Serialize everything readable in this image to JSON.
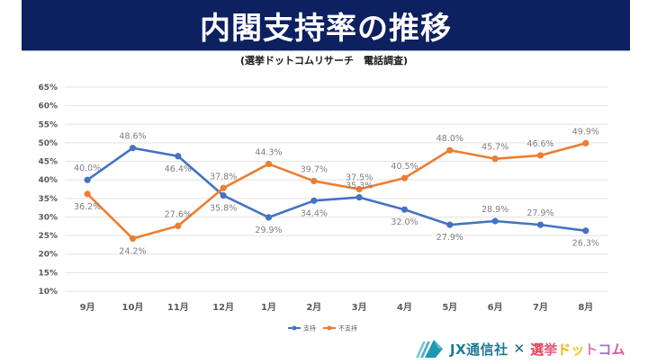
{
  "header": {
    "title": "内閣支持率の推移",
    "subtitle": "(選挙ドットコムリサーチ　電話調査)"
  },
  "footer": {
    "logo_left": "JX通信社",
    "logo_sep": "✕",
    "logo_right_chars": [
      {
        "ch": "選",
        "color": "#e0405a"
      },
      {
        "ch": "挙",
        "color": "#e85a7a"
      },
      {
        "ch": "ド",
        "color": "#f2b418"
      },
      {
        "ch": "ッ",
        "color": "#f2c418"
      },
      {
        "ch": "ト",
        "color": "#e07ab0"
      },
      {
        "ch": "コ",
        "color": "#a070c8"
      },
      {
        "ch": "ム",
        "color": "#d060a0"
      }
    ]
  },
  "chart_data": {
    "type": "line",
    "title": "内閣支持率の推移",
    "subtitle": "(選挙ドットコムリサーチ　電話調査)",
    "xlabel": "",
    "ylabel": "",
    "categories": [
      "9月",
      "10月",
      "11月",
      "12月",
      "1月",
      "2月",
      "3月",
      "4月",
      "5月",
      "6月",
      "7月",
      "8月"
    ],
    "ylim": [
      10,
      65
    ],
    "yticks": [
      10,
      15,
      20,
      25,
      30,
      35,
      40,
      45,
      50,
      55,
      60,
      65
    ],
    "ytick_labels": [
      "10%",
      "15%",
      "20%",
      "25%",
      "30%",
      "35%",
      "40%",
      "45%",
      "50%",
      "55%",
      "60%",
      "65%"
    ],
    "grid": true,
    "legend_position": "bottom",
    "series": [
      {
        "name": "支持",
        "color": "#4472c4",
        "values": [
          40.0,
          48.6,
          46.4,
          35.8,
          29.9,
          34.4,
          35.3,
          32.0,
          27.9,
          28.9,
          27.9,
          26.3
        ],
        "labels": [
          "40.0%",
          "48.6%",
          "46.4%",
          "35.8%",
          "29.9%",
          "34.4%",
          "35.3%",
          "32.0%",
          "27.9%",
          "28.9%",
          "27.9%",
          "26.3%"
        ],
        "label_side": [
          "above",
          "above",
          "below",
          "below",
          "below",
          "below",
          "above",
          "below",
          "below",
          "above",
          "above",
          "below"
        ]
      },
      {
        "name": "不支持",
        "color": "#ed7d31",
        "values": [
          36.2,
          24.2,
          27.6,
          37.8,
          44.3,
          39.7,
          37.5,
          40.5,
          48.0,
          45.7,
          46.6,
          49.9
        ],
        "labels": [
          "36.2%",
          "24.2%",
          "27.6%",
          "37.8%",
          "44.3%",
          "39.7%",
          "37.5%",
          "40.5%",
          "48.0%",
          "45.7%",
          "46.6%",
          "49.9%"
        ],
        "label_side": [
          "below",
          "below",
          "above",
          "above",
          "above",
          "above",
          "above",
          "above",
          "above",
          "above",
          "above",
          "above"
        ]
      }
    ]
  }
}
